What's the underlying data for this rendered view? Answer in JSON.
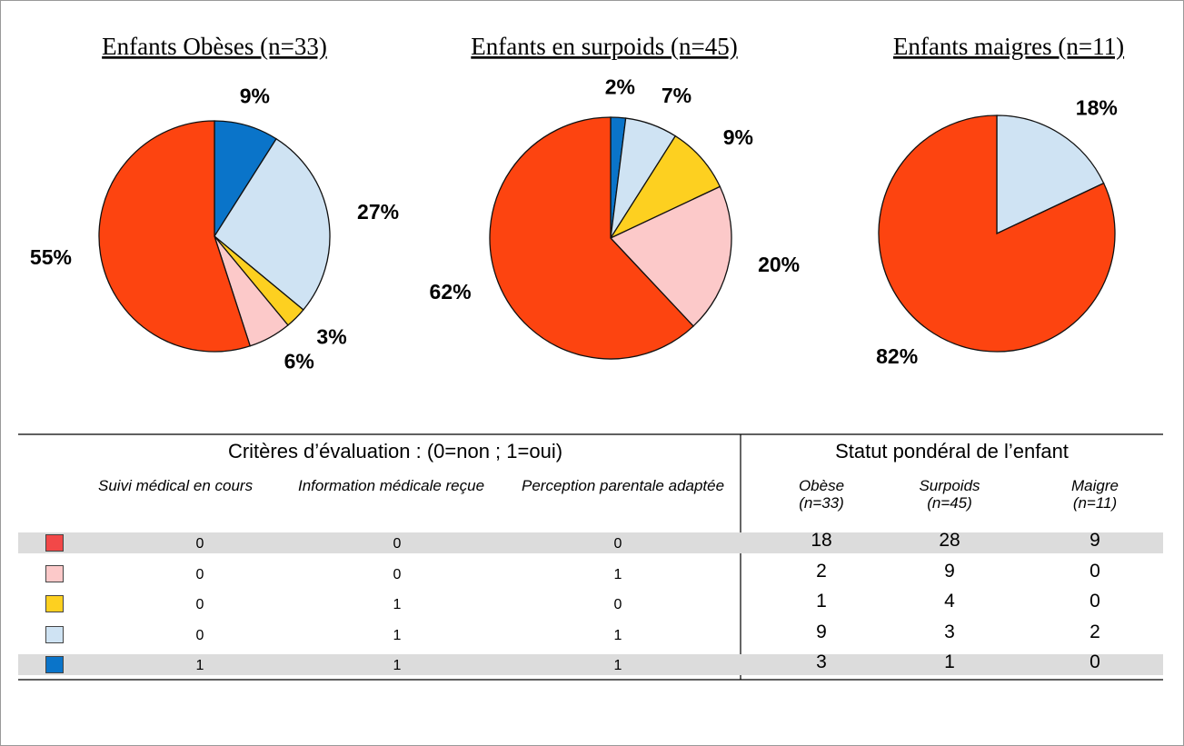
{
  "chart_data": [
    {
      "type": "pie",
      "title": "Enfants Obèses (n=33)",
      "values": [
        9,
        27,
        3,
        6,
        55
      ],
      "value_labels": [
        "9%",
        "27%",
        "3%",
        "6%",
        "55%"
      ],
      "colors": [
        "#0a74c9",
        "#cfe3f3",
        "#fdd020",
        "#fcc9c9",
        "#fd4410"
      ]
    },
    {
      "type": "pie",
      "title": "Enfants en surpoids (n=45)",
      "values": [
        2,
        7,
        9,
        20,
        62
      ],
      "value_labels": [
        "2%",
        "7%",
        "9%",
        "20%",
        "62%"
      ],
      "colors": [
        "#0a74c9",
        "#cfe3f3",
        "#fdd020",
        "#fcc9c9",
        "#fd4410"
      ]
    },
    {
      "type": "pie",
      "title": "Enfants maigres (n=11)",
      "values": [
        18,
        82
      ],
      "value_labels": [
        "18%",
        "82%"
      ],
      "colors": [
        "#cfe3f3",
        "#fd4410"
      ]
    }
  ],
  "table": {
    "headers": [
      "Critères d’évaluation : (0=non ; 1=oui)",
      "Statut pondéral de l’enfant"
    ],
    "columns": [
      "Suivi médical en cours",
      "Information médicale reçue",
      "Perception parentale adaptée",
      "Obèse (n=33)",
      "Surpoids (n=45)",
      "Maigre (n=11)"
    ],
    "rows": [
      {
        "color": "#f24848",
        "cells": [
          0,
          0,
          0,
          18,
          28,
          9
        ]
      },
      {
        "color": "#fcc9c9",
        "cells": [
          0,
          0,
          1,
          2,
          9,
          0
        ]
      },
      {
        "color": "#fdd020",
        "cells": [
          0,
          1,
          0,
          1,
          4,
          0
        ]
      },
      {
        "color": "#cfe3f3",
        "cells": [
          0,
          1,
          1,
          9,
          3,
          2
        ]
      },
      {
        "color": "#0a74c9",
        "cells": [
          1,
          1,
          1,
          3,
          1,
          0
        ]
      }
    ]
  }
}
